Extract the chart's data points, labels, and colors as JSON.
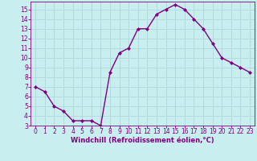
{
  "x": [
    0,
    1,
    2,
    3,
    4,
    5,
    6,
    7,
    8,
    9,
    10,
    11,
    12,
    13,
    14,
    15,
    16,
    17,
    18,
    19,
    20,
    21,
    22,
    23
  ],
  "y": [
    7.0,
    6.5,
    5.0,
    4.5,
    3.5,
    3.5,
    3.5,
    3.0,
    8.5,
    10.5,
    11.0,
    13.0,
    13.0,
    14.5,
    15.0,
    15.5,
    15.0,
    14.0,
    13.0,
    11.5,
    10.0,
    9.5,
    9.0,
    8.5
  ],
  "line_color": "#800080",
  "marker": "D",
  "marker_size": 2,
  "bg_color": "#c8eef0",
  "grid_color": "#b0d8dc",
  "xlabel": "Windchill (Refroidissement éolien,°C)",
  "xlabel_color": "#800080",
  "tick_color": "#800080",
  "ylim_min": 3,
  "ylim_max": 15.8,
  "xlim_min": -0.5,
  "xlim_max": 23.5,
  "yticks": [
    3,
    4,
    5,
    6,
    7,
    8,
    9,
    10,
    11,
    12,
    13,
    14,
    15
  ],
  "xticks": [
    0,
    1,
    2,
    3,
    4,
    5,
    6,
    7,
    8,
    9,
    10,
    11,
    12,
    13,
    14,
    15,
    16,
    17,
    18,
    19,
    20,
    21,
    22,
    23
  ],
  "line_width": 1.0,
  "tick_fontsize": 5.5,
  "xlabel_fontsize": 6.0
}
